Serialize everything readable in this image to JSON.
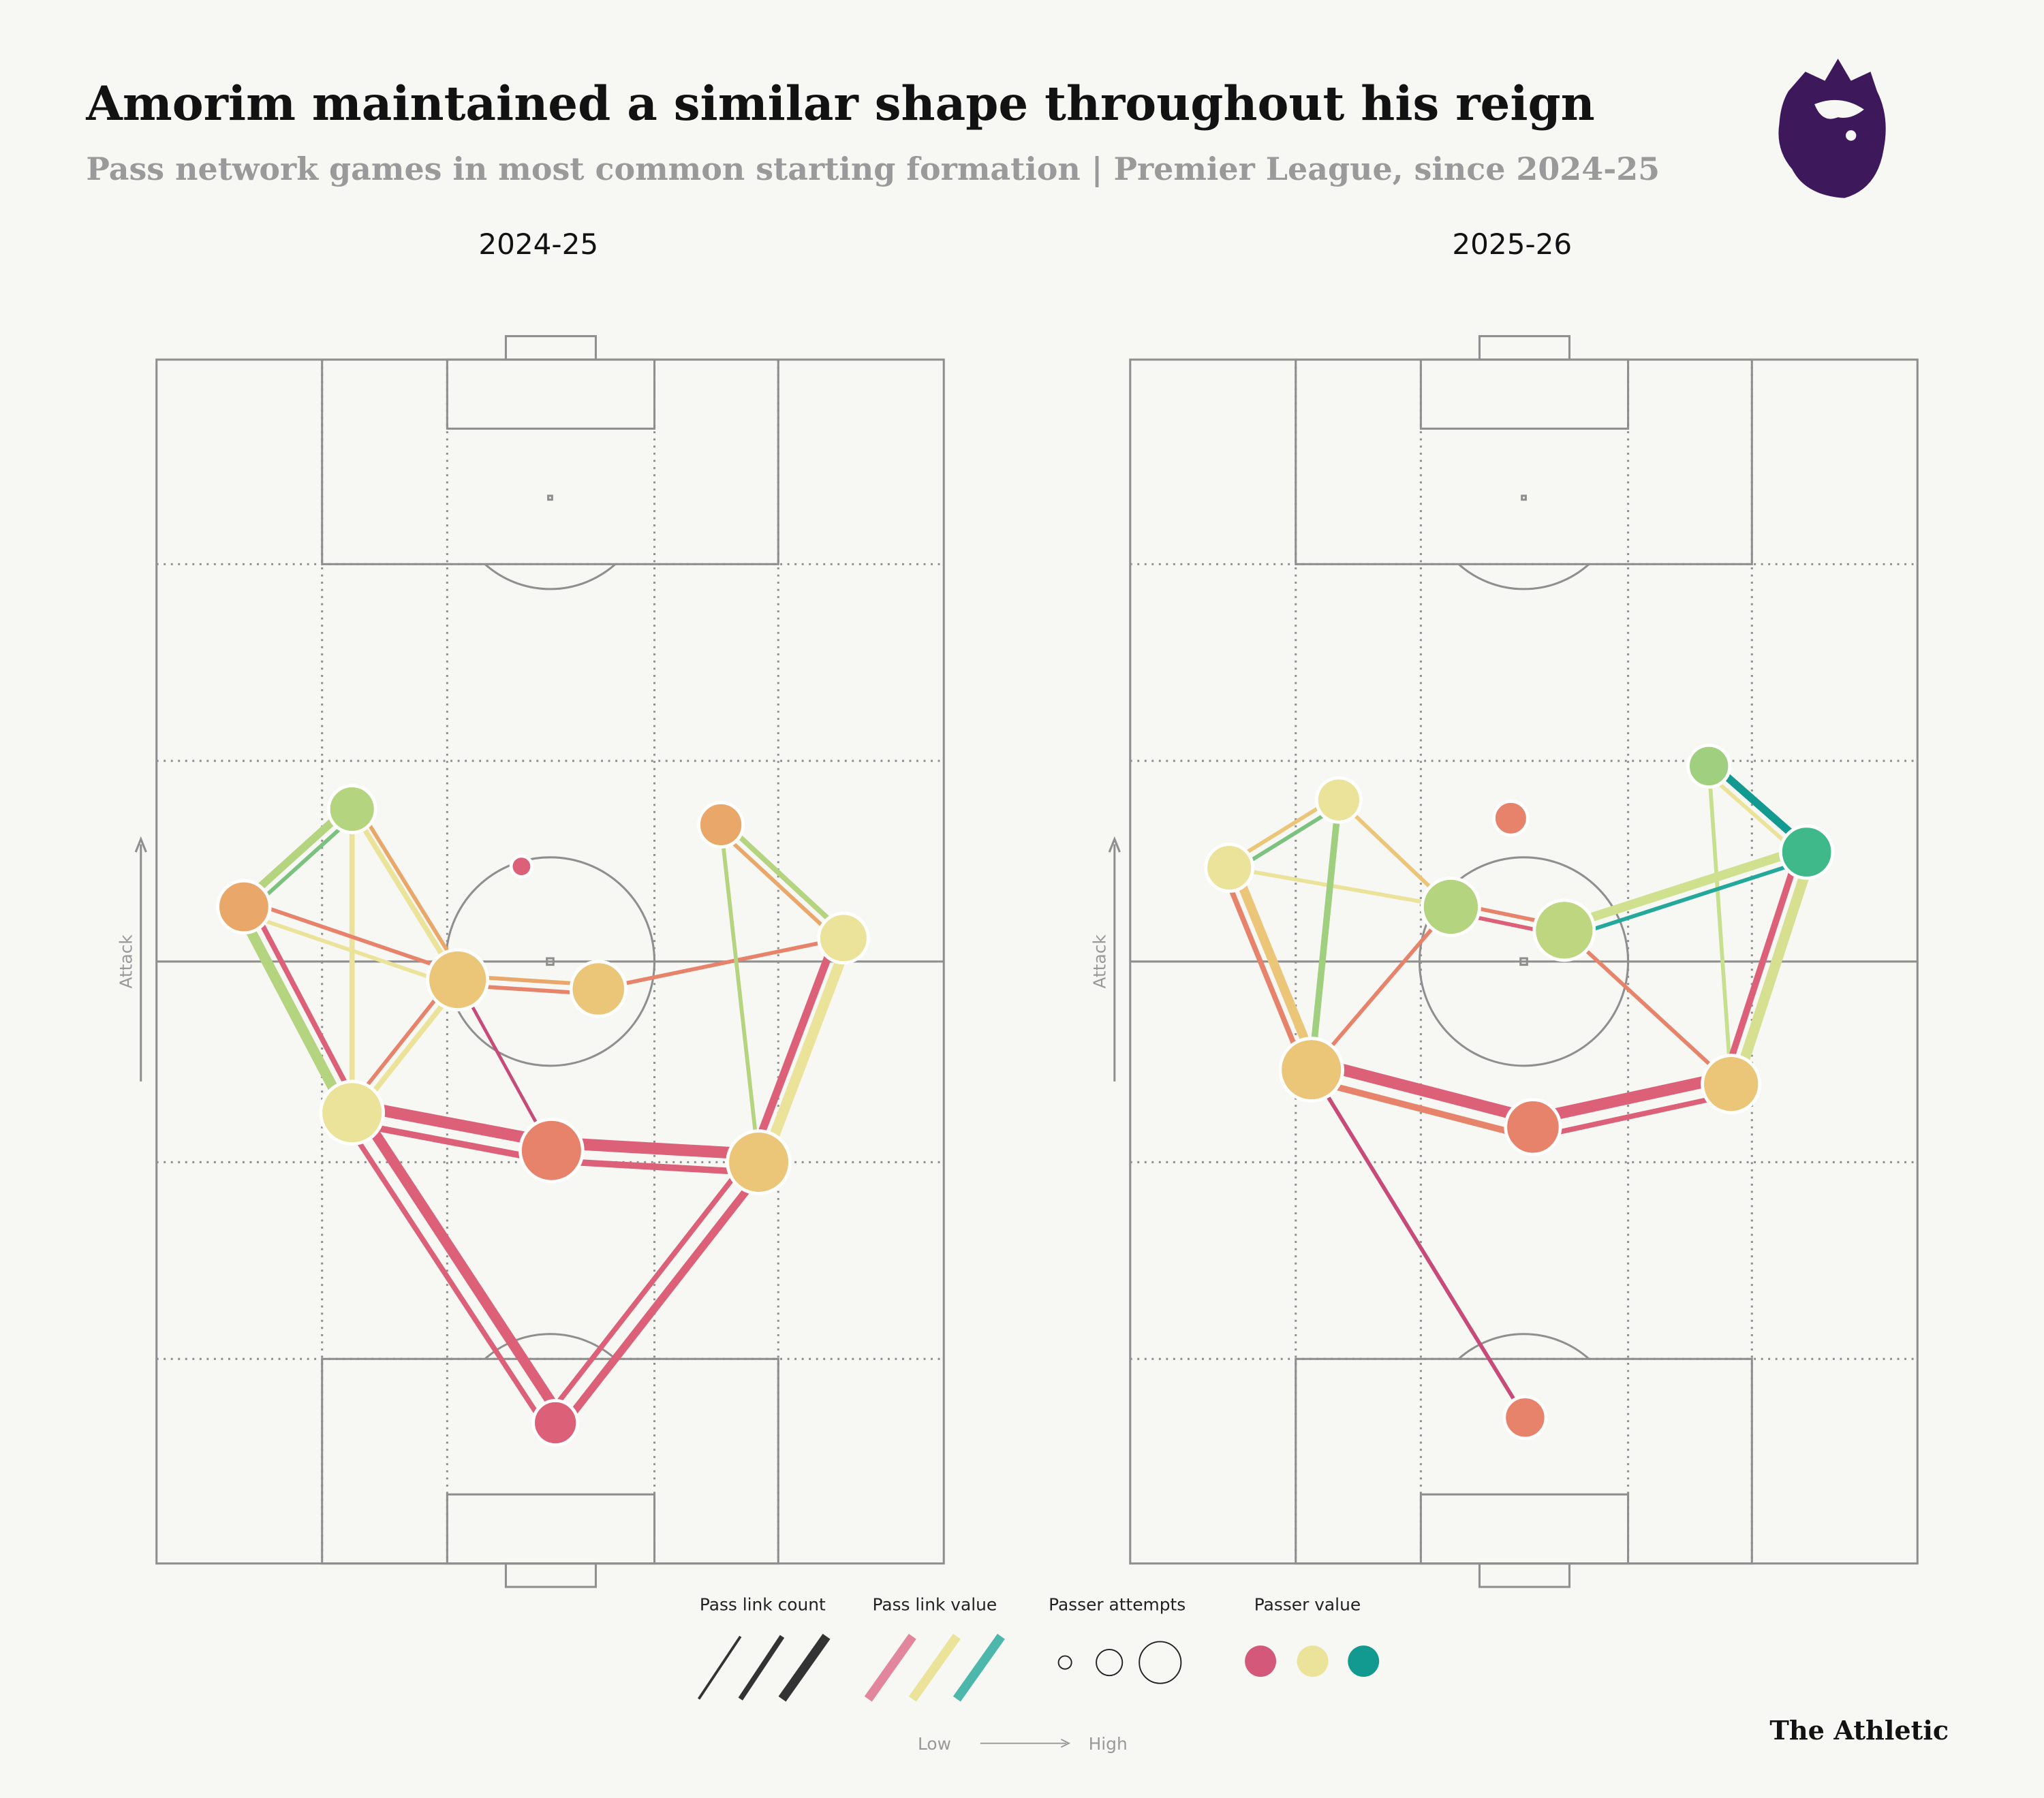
{
  "header": {
    "title": "Amorim maintained a similar shape throughout his reign",
    "subtitle": "Pass network games in most common starting formation | Premier League, since 2024-25"
  },
  "panels": [
    {
      "title": "2024-25",
      "axis_label": "Attack"
    },
    {
      "title": "2025-26",
      "axis_label": "Attack"
    }
  ],
  "legend": {
    "items": [
      "Pass link count",
      "Pass link value",
      "Passer attempts",
      "Passer value"
    ],
    "low": "Low",
    "high": "High"
  },
  "footer": {
    "brand": "The Athletic"
  }
}
